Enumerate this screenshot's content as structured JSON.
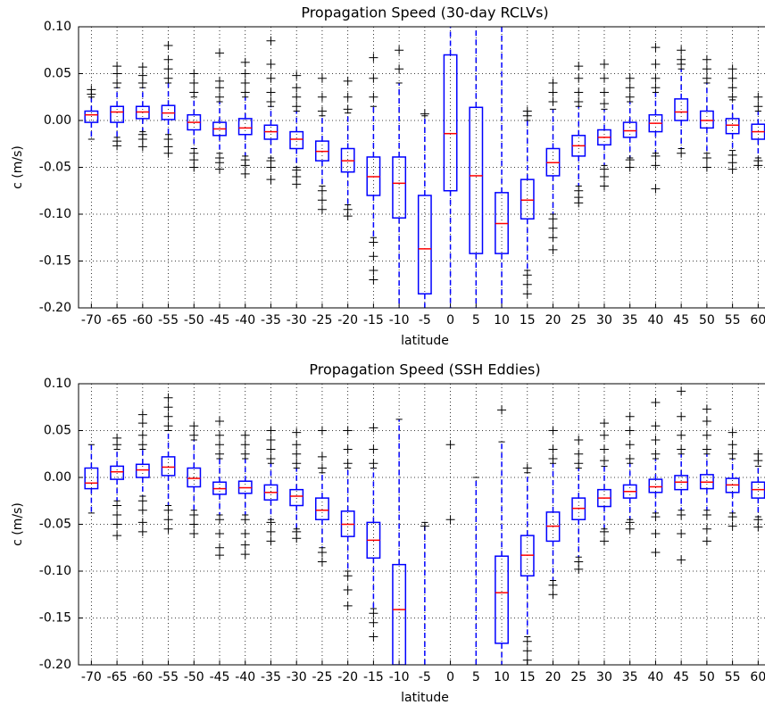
{
  "chart_data": [
    {
      "type": "box",
      "title": "Propagation Speed (30-day RCLVs)",
      "xlabel": "latitude",
      "ylabel": "c (m/s)",
      "categories": [
        "-70",
        "-65",
        "-60",
        "-55",
        "-50",
        "-45",
        "-40",
        "-35",
        "-30",
        "-25",
        "-20",
        "-15",
        "-10",
        "-5",
        "0",
        "5",
        "10",
        "15",
        "20",
        "25",
        "30",
        "35",
        "40",
        "45",
        "50",
        "55",
        "60"
      ],
      "box_color": "#0000ff",
      "median_color": "#ff0000",
      "flier_color": "#000000",
      "grid": true,
      "ylim": [
        -0.2,
        0.1
      ],
      "yticks": [
        {
          "value": -0.2,
          "label": "-0.20"
        },
        -0.15,
        {
          "value": -0.1,
          "label": "-0.10"
        },
        -0.05,
        {
          "value": 0,
          "label": "0.00"
        },
        0.05,
        {
          "value": 0.1,
          "label": "0.10"
        }
      ],
      "boxes": [
        {
          "q1": -0.002,
          "median": 0.006,
          "q3": 0.01,
          "whislo": -0.02,
          "whishi": 0.025,
          "fliers": [
            0.028,
            0.033
          ]
        },
        {
          "q1": -0.002,
          "median": 0.009,
          "q3": 0.015,
          "whislo": -0.018,
          "whishi": 0.035,
          "fliers": [
            0.04,
            0.05,
            0.058,
            -0.022,
            -0.027
          ]
        },
        {
          "q1": 0.002,
          "median": 0.009,
          "q3": 0.015,
          "whislo": -0.012,
          "whishi": 0.035,
          "fliers": [
            0.04,
            0.048,
            0.057,
            -0.015,
            -0.02,
            -0.028
          ]
        },
        {
          "q1": 0.001,
          "median": 0.008,
          "q3": 0.016,
          "whislo": -0.015,
          "whishi": 0.04,
          "fliers": [
            0.045,
            0.055,
            0.065,
            0.08,
            -0.02,
            -0.028,
            -0.035
          ]
        },
        {
          "q1": -0.01,
          "median": -0.002,
          "q3": 0.006,
          "whislo": -0.03,
          "whishi": 0.025,
          "fliers": [
            0.03,
            0.04,
            0.05,
            -0.035,
            -0.042,
            -0.05
          ]
        },
        {
          "q1": -0.016,
          "median": -0.009,
          "q3": -0.002,
          "whislo": -0.035,
          "whishi": 0.02,
          "fliers": [
            0.025,
            0.035,
            0.042,
            0.072,
            -0.04,
            -0.045,
            -0.052
          ]
        },
        {
          "q1": -0.015,
          "median": -0.008,
          "q3": 0.002,
          "whislo": -0.038,
          "whishi": 0.025,
          "fliers": [
            0.03,
            0.04,
            0.05,
            0.062,
            -0.042,
            -0.048,
            -0.057
          ]
        },
        {
          "q1": -0.02,
          "median": -0.012,
          "q3": -0.005,
          "whislo": -0.04,
          "whishi": 0.015,
          "fliers": [
            0.02,
            0.03,
            0.045,
            0.06,
            0.085,
            -0.043,
            -0.05,
            -0.063
          ]
        },
        {
          "q1": -0.03,
          "median": -0.02,
          "q3": -0.012,
          "whislo": -0.05,
          "whishi": 0.01,
          "fliers": [
            0.015,
            0.025,
            0.035,
            0.048,
            -0.053,
            -0.06,
            -0.068
          ]
        },
        {
          "q1": -0.043,
          "median": -0.033,
          "q3": -0.022,
          "whislo": -0.07,
          "whishi": 0.005,
          "fliers": [
            0.01,
            0.025,
            0.045,
            -0.075,
            -0.085,
            -0.095
          ]
        },
        {
          "q1": -0.055,
          "median": -0.043,
          "q3": -0.03,
          "whislo": -0.09,
          "whishi": 0.008,
          "fliers": [
            0.012,
            0.025,
            0.042,
            -0.095,
            -0.102
          ]
        },
        {
          "q1": -0.08,
          "median": -0.06,
          "q3": -0.039,
          "whislo": -0.125,
          "whishi": 0.015,
          "fliers": [
            0.025,
            0.045,
            0.067,
            -0.13,
            -0.145,
            -0.16,
            -0.17
          ]
        },
        {
          "q1": -0.104,
          "median": -0.067,
          "q3": -0.039,
          "whislo": -0.2,
          "whishi": 0.04,
          "fliers": [
            0.055,
            0.075
          ]
        },
        {
          "q1": -0.185,
          "median": -0.137,
          "q3": -0.08,
          "whislo": -0.2,
          "whishi": 0.005,
          "fliers": [
            0.007
          ]
        },
        {
          "q1": -0.075,
          "median": -0.014,
          "q3": 0.07,
          "whislo": -0.2,
          "whishi": 0.1,
          "fliers": []
        },
        {
          "q1": -0.142,
          "median": -0.059,
          "q3": 0.014,
          "whislo": -0.2,
          "whishi": 0.1,
          "fliers": []
        },
        {
          "q1": -0.142,
          "median": -0.11,
          "q3": -0.077,
          "whislo": -0.2,
          "whishi": 0.1,
          "fliers": []
        },
        {
          "q1": -0.105,
          "median": -0.085,
          "q3": -0.063,
          "whislo": -0.16,
          "whishi": 0.0,
          "fliers": [
            0.005,
            0.01,
            -0.165,
            -0.175,
            -0.185
          ]
        },
        {
          "q1": -0.059,
          "median": -0.045,
          "q3": -0.03,
          "whislo": -0.1,
          "whishi": 0.012,
          "fliers": [
            0.02,
            0.03,
            0.04,
            -0.105,
            -0.115,
            -0.125,
            -0.138
          ]
        },
        {
          "q1": -0.038,
          "median": -0.027,
          "q3": -0.016,
          "whislo": -0.07,
          "whishi": 0.015,
          "fliers": [
            0.02,
            0.03,
            0.045,
            0.058,
            -0.075,
            -0.082,
            -0.088
          ]
        },
        {
          "q1": -0.026,
          "median": -0.018,
          "q3": -0.01,
          "whislo": -0.048,
          "whishi": 0.012,
          "fliers": [
            0.018,
            0.03,
            0.045,
            0.06,
            -0.052,
            -0.06,
            -0.07
          ]
        },
        {
          "q1": -0.018,
          "median": -0.011,
          "q3": -0.002,
          "whislo": -0.04,
          "whishi": 0.02,
          "fliers": [
            0.025,
            0.035,
            0.045,
            -0.042,
            -0.05
          ]
        },
        {
          "q1": -0.012,
          "median": -0.003,
          "q3": 0.006,
          "whislo": -0.035,
          "whishi": 0.03,
          "fliers": [
            0.035,
            0.045,
            0.06,
            0.078,
            -0.038,
            -0.048,
            -0.073
          ]
        },
        {
          "q1": 0.0,
          "median": 0.009,
          "q3": 0.023,
          "whislo": -0.03,
          "whishi": 0.055,
          "fliers": [
            0.06,
            0.065,
            0.075,
            -0.035
          ]
        },
        {
          "q1": -0.008,
          "median": 0.0,
          "q3": 0.01,
          "whislo": -0.035,
          "whishi": 0.04,
          "fliers": [
            0.045,
            0.055,
            0.065,
            -0.04,
            -0.05
          ]
        },
        {
          "q1": -0.014,
          "median": -0.005,
          "q3": 0.002,
          "whislo": -0.032,
          "whishi": 0.022,
          "fliers": [
            0.025,
            0.035,
            0.045,
            0.055,
            -0.037,
            -0.045,
            -0.052
          ]
        },
        {
          "q1": -0.02,
          "median": -0.012,
          "q3": -0.004,
          "whislo": -0.04,
          "whishi": 0.01,
          "fliers": [
            0.015,
            0.025,
            -0.043,
            -0.048
          ]
        }
      ]
    },
    {
      "type": "box",
      "title": "Propagation Speed (SSH Eddies)",
      "xlabel": "latitude",
      "ylabel": "c (m/s)",
      "categories": [
        "-70",
        "-65",
        "-60",
        "-55",
        "-50",
        "-45",
        "-40",
        "-35",
        "-30",
        "-25",
        "-20",
        "-15",
        "-10",
        "-5",
        "0",
        "5",
        "10",
        "15",
        "20",
        "25",
        "30",
        "35",
        "40",
        "45",
        "50",
        "55",
        "60"
      ],
      "box_color": "#0000ff",
      "median_color": "#ff0000",
      "flier_color": "#000000",
      "grid": true,
      "ylim": [
        -0.2,
        0.1
      ],
      "yticks": [
        {
          "value": -0.2,
          "label": "-0.20"
        },
        -0.15,
        {
          "value": -0.1,
          "label": "-0.10"
        },
        -0.05,
        {
          "value": 0,
          "label": "0.00"
        },
        0.05,
        {
          "value": 0.1,
          "label": "0.10"
        }
      ],
      "boxes": [
        {
          "q1": -0.012,
          "median": -0.006,
          "q3": 0.01,
          "whislo": -0.038,
          "whishi": 0.035,
          "fliers": []
        },
        {
          "q1": -0.002,
          "median": 0.006,
          "q3": 0.012,
          "whislo": -0.025,
          "whishi": 0.03,
          "fliers": [
            0.035,
            0.042,
            -0.03,
            -0.04,
            -0.05,
            -0.062
          ]
        },
        {
          "q1": 0.0,
          "median": 0.008,
          "q3": 0.014,
          "whislo": -0.02,
          "whishi": 0.03,
          "fliers": [
            0.035,
            0.045,
            0.058,
            0.067,
            -0.025,
            -0.035,
            -0.048,
            -0.058
          ]
        },
        {
          "q1": 0.002,
          "median": 0.011,
          "q3": 0.022,
          "whislo": -0.03,
          "whishi": 0.05,
          "fliers": [
            0.055,
            0.065,
            0.075,
            0.085,
            -0.035,
            -0.045,
            -0.055
          ]
        },
        {
          "q1": -0.01,
          "median": -0.001,
          "q3": 0.01,
          "whislo": -0.035,
          "whishi": 0.04,
          "fliers": [
            0.045,
            0.055,
            -0.04,
            -0.05,
            -0.06
          ]
        },
        {
          "q1": -0.018,
          "median": -0.012,
          "q3": -0.005,
          "whislo": -0.04,
          "whishi": 0.02,
          "fliers": [
            0.025,
            0.035,
            0.045,
            0.06,
            -0.045,
            -0.06,
            -0.075,
            -0.083
          ]
        },
        {
          "q1": -0.017,
          "median": -0.011,
          "q3": -0.004,
          "whislo": -0.04,
          "whishi": 0.02,
          "fliers": [
            0.025,
            0.035,
            0.045,
            -0.045,
            -0.06,
            -0.072,
            -0.082
          ]
        },
        {
          "q1": -0.024,
          "median": -0.016,
          "q3": -0.008,
          "whislo": -0.045,
          "whishi": 0.015,
          "fliers": [
            0.02,
            0.03,
            0.04,
            0.05,
            -0.048,
            -0.058,
            -0.068
          ]
        },
        {
          "q1": -0.03,
          "median": -0.02,
          "q3": -0.013,
          "whislo": -0.055,
          "whishi": 0.01,
          "fliers": [
            0.015,
            0.025,
            0.035,
            0.048,
            -0.058,
            -0.065
          ]
        },
        {
          "q1": -0.045,
          "median": -0.035,
          "q3": -0.022,
          "whislo": -0.075,
          "whishi": 0.005,
          "fliers": [
            0.01,
            0.022,
            0.05,
            -0.08,
            -0.09
          ]
        },
        {
          "q1": -0.063,
          "median": -0.05,
          "q3": -0.036,
          "whislo": -0.1,
          "whishi": 0.01,
          "fliers": [
            0.015,
            0.03,
            0.05,
            -0.105,
            -0.12,
            -0.137
          ]
        },
        {
          "q1": -0.086,
          "median": -0.067,
          "q3": -0.048,
          "whislo": -0.14,
          "whishi": 0.01,
          "fliers": [
            0.015,
            0.03,
            0.053,
            -0.145,
            -0.155,
            -0.17
          ]
        },
        {
          "q1": -0.2,
          "median": -0.141,
          "q3": -0.093,
          "whislo": -0.2,
          "whishi": 0.062,
          "fliers": []
        },
        {
          "q1": null,
          "median": null,
          "q3": null,
          "whislo": -0.2,
          "whishi": -0.048,
          "fliers": [
            -0.052
          ]
        },
        {
          "q1": null,
          "median": null,
          "q3": null,
          "whislo": null,
          "whishi": null,
          "fliers": [
            0.035,
            -0.045
          ]
        },
        {
          "q1": null,
          "median": null,
          "q3": null,
          "whislo": -0.2,
          "whishi": 0.0,
          "fliers": []
        },
        {
          "q1": -0.177,
          "median": -0.123,
          "q3": -0.084,
          "whislo": -0.2,
          "whishi": 0.038,
          "fliers": [
            0.072
          ]
        },
        {
          "q1": -0.105,
          "median": -0.083,
          "q3": -0.062,
          "whislo": -0.17,
          "whishi": 0.005,
          "fliers": [
            0.01,
            -0.175,
            -0.185,
            -0.195
          ]
        },
        {
          "q1": -0.068,
          "median": -0.052,
          "q3": -0.037,
          "whislo": -0.11,
          "whishi": 0.015,
          "fliers": [
            0.02,
            0.03,
            0.05,
            -0.115,
            -0.125
          ]
        },
        {
          "q1": -0.045,
          "median": -0.033,
          "q3": -0.022,
          "whislo": -0.085,
          "whishi": 0.01,
          "fliers": [
            0.015,
            0.025,
            0.04,
            -0.09,
            -0.098
          ]
        },
        {
          "q1": -0.031,
          "median": -0.022,
          "q3": -0.013,
          "whislo": -0.055,
          "whishi": 0.012,
          "fliers": [
            0.018,
            0.03,
            0.045,
            0.058,
            -0.058,
            -0.068
          ]
        },
        {
          "q1": -0.022,
          "median": -0.015,
          "q3": -0.008,
          "whislo": -0.045,
          "whishi": 0.015,
          "fliers": [
            0.02,
            0.035,
            0.05,
            0.065,
            -0.048,
            -0.055
          ]
        },
        {
          "q1": -0.016,
          "median": -0.01,
          "q3": -0.002,
          "whislo": -0.038,
          "whishi": 0.02,
          "fliers": [
            0.025,
            0.04,
            0.055,
            0.08,
            -0.042,
            -0.06,
            -0.08
          ]
        },
        {
          "q1": -0.013,
          "median": -0.005,
          "q3": 0.002,
          "whislo": -0.035,
          "whishi": 0.025,
          "fliers": [
            0.03,
            0.045,
            0.065,
            0.092,
            -0.04,
            -0.06,
            -0.088
          ]
        },
        {
          "q1": -0.012,
          "median": -0.005,
          "q3": 0.003,
          "whislo": -0.035,
          "whishi": 0.025,
          "fliers": [
            0.03,
            0.045,
            0.06,
            0.073,
            -0.04,
            -0.055,
            -0.068
          ]
        },
        {
          "q1": -0.016,
          "median": -0.008,
          "q3": -0.001,
          "whislo": -0.038,
          "whishi": 0.02,
          "fliers": [
            0.025,
            0.035,
            0.048,
            -0.042,
            -0.052
          ]
        },
        {
          "q1": -0.022,
          "median": -0.013,
          "q3": -0.005,
          "whislo": -0.042,
          "whishi": 0.012,
          "fliers": [
            0.018,
            0.025,
            -0.045,
            -0.053
          ]
        }
      ]
    }
  ]
}
